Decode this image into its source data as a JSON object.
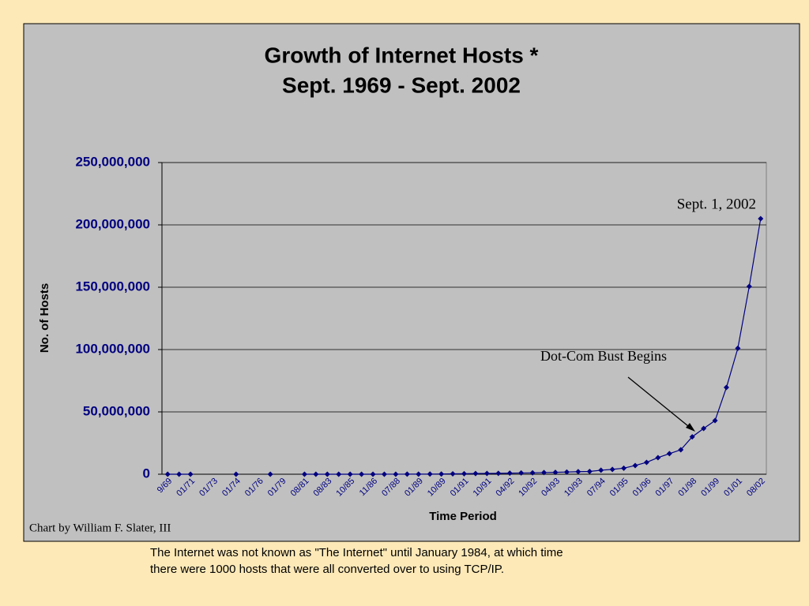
{
  "chart_data": {
    "type": "line",
    "title": "Growth of Internet Hosts *",
    "subtitle": "Sept. 1969 - Sept. 2002",
    "y_label": "No. of Hosts",
    "x_label": "Time Period",
    "color": "#000080",
    "grid": true,
    "ylim": [
      0,
      250000000
    ],
    "yticks": [
      0,
      {
        "value": 50000000,
        "label": "50,000,000"
      },
      {
        "value": 100000000,
        "label": "100,000,000"
      },
      {
        "value": 150000000,
        "label": "150,000,000"
      },
      {
        "value": 200000000,
        "label": "200,000,000"
      },
      {
        "value": 250000000,
        "label": "250,000,000"
      }
    ],
    "categories": [
      "9/69",
      null,
      "01/71",
      null,
      "01/73",
      null,
      "01/74",
      null,
      "01/76",
      null,
      "01/79",
      null,
      "08/81",
      null,
      "08/83",
      null,
      "10/85",
      null,
      "11/86",
      null,
      "07/88",
      null,
      "01/89",
      null,
      "10/89",
      null,
      "01/91",
      null,
      "10/91",
      null,
      "04/92",
      null,
      "10/92",
      null,
      "04/93",
      null,
      "10/93",
      null,
      "07/94",
      null,
      "01/95",
      null,
      "01/96",
      null,
      "01/97",
      null,
      "01/98",
      null,
      "01/99",
      null,
      "01/01",
      null,
      "08/02"
    ],
    "values": [
      4,
      23,
      35,
      null,
      null,
      null,
      62,
      null,
      null,
      111,
      null,
      null,
      213,
      235,
      562,
      1024,
      1961,
      2308,
      5089,
      28174,
      33000,
      56000,
      80000,
      130000,
      159000,
      313000,
      376000,
      535000,
      617000,
      727000,
      890000,
      992000,
      1136000,
      1313000,
      1486000,
      1776000,
      2056000,
      2217000,
      3212000,
      3864000,
      4852000,
      7000000,
      9500000,
      13300000,
      16500000,
      19600000,
      30000000,
      36700000,
      43000000,
      69600000,
      101000000,
      150600000,
      205000000
    ],
    "annotations": [
      "Sept. 1, 2002",
      "Dot-Com Bust Begins"
    ],
    "credit": "Chart by William F. Slater, III"
  },
  "footnote": [
    "The Internet was not known as \"The Internet\" until January 1984, at which time",
    "there were 1000 hosts that were all converted over to using TCP/IP."
  ]
}
